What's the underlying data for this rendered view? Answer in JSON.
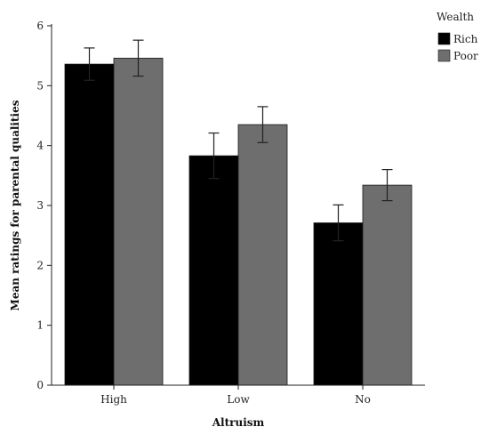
{
  "chart_data": {
    "type": "bar",
    "categories": [
      "High",
      "Low",
      "No"
    ],
    "series": [
      {
        "name": "Rich",
        "values": [
          5.36,
          3.83,
          2.71
        ],
        "errors": [
          0.27,
          0.38,
          0.3
        ],
        "color": "#000000"
      },
      {
        "name": "Poor",
        "values": [
          5.46,
          4.35,
          3.34
        ],
        "errors": [
          0.3,
          0.3,
          0.26
        ],
        "color": "#6e6e6e"
      }
    ],
    "xlabel": "Altruism",
    "ylabel": "Mean ratings for parental qualities",
    "ylim": [
      0,
      6
    ],
    "yticks": [
      "0",
      "1",
      "2",
      "3",
      "4",
      "5",
      "6"
    ],
    "legend": {
      "title": "Wealth",
      "position": "top-right"
    },
    "grid": false
  }
}
